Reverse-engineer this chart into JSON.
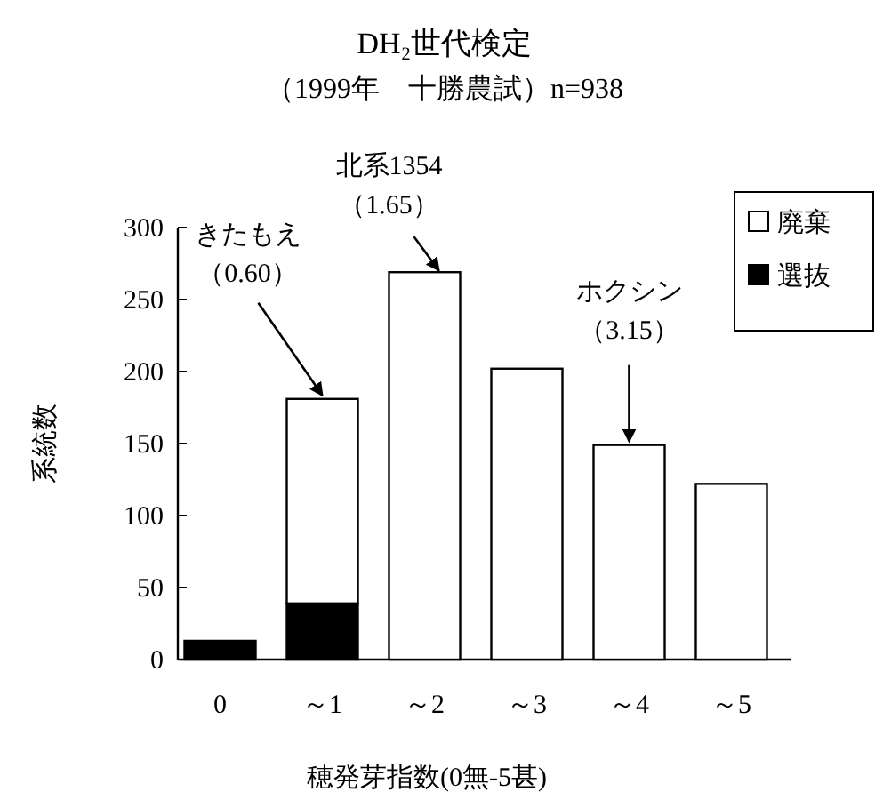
{
  "chart_data": {
    "type": "bar",
    "stacked": true,
    "title": "DH₂世代検定",
    "subtitle": "（1999年　十勝農試）n=938",
    "xlabel": "穂発芽指数(0無-5甚)",
    "ylabel": "系統数",
    "categories": [
      "0",
      "～1",
      "～2",
      "～3",
      "～4",
      "～5"
    ],
    "series": [
      {
        "name": "選抜",
        "color": "#000000",
        "values": [
          13,
          39,
          0,
          0,
          0,
          0
        ]
      },
      {
        "name": "廃棄",
        "color": "#ffffff",
        "values": [
          0,
          142,
          269,
          202,
          149,
          122
        ]
      }
    ],
    "ylim": [
      0,
      300
    ],
    "yticks": [
      0,
      50,
      100,
      150,
      200,
      250,
      300
    ],
    "grid": false,
    "legend": "top right",
    "annotations": [
      {
        "text": "きたもえ（0.60）",
        "x": "～1",
        "y": 181
      },
      {
        "text": "北系1354（1.65）",
        "x": "～2",
        "y": 269
      },
      {
        "text": "ホクシン（3.15）",
        "x": "～4",
        "y": 149
      }
    ]
  }
}
